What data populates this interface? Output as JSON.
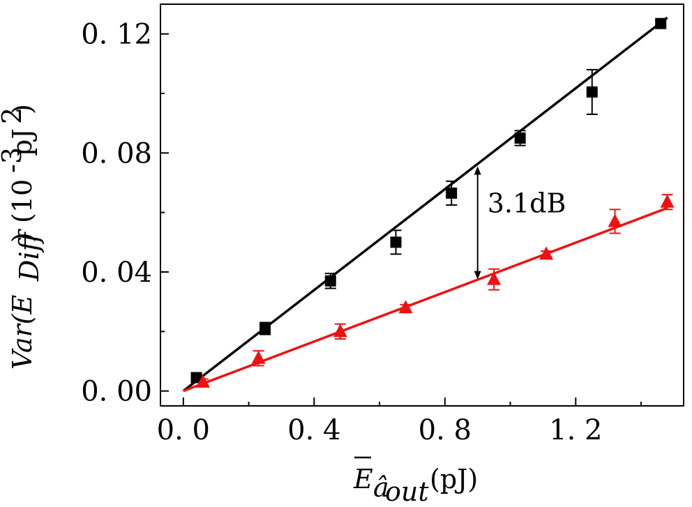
{
  "chart_data": {
    "type": "scatter",
    "xlim": [
      -0.07,
      1.53
    ],
    "ylim": [
      -0.005,
      0.13
    ],
    "x_ticks": [
      0.0,
      0.4,
      0.8,
      1.2
    ],
    "x_tick_labels": [
      "0. 0",
      "0. 4",
      "0. 8",
      "1. 2"
    ],
    "x_minor_ticks": [
      0.2,
      0.6,
      1.0,
      1.4
    ],
    "y_ticks": [
      0.0,
      0.04,
      0.08,
      0.12
    ],
    "y_tick_labels": [
      "0. 00",
      "0. 04",
      "0. 08",
      "0. 12"
    ],
    "y_minor_ticks": [
      0.02,
      0.06,
      0.1
    ],
    "xlabel": {
      "main": "E",
      "sub": "â",
      "subsub": "out",
      "units": "(pJ)"
    },
    "ylabel": {
      "prefix": "Var(E",
      "sub": "Diff",
      "suffix": ")",
      "units_pre": "(10",
      "units_exp1": "-3",
      "units_mid": "pJ",
      "units_exp2": "2",
      "units_post": ")"
    },
    "series": [
      {
        "name": "black",
        "marker": "square",
        "color": "#000000",
        "x": [
          0.04,
          0.25,
          0.45,
          0.65,
          0.82,
          1.03,
          1.25,
          1.46
        ],
        "y": [
          0.0045,
          0.021,
          0.037,
          0.05,
          0.0665,
          0.085,
          0.1005,
          0.1235
        ],
        "err": [
          0.0015,
          0.002,
          0.0025,
          0.004,
          0.004,
          0.0025,
          0.0075,
          0.001
        ],
        "fit": {
          "x": [
            0.0,
            1.48
          ],
          "y": [
            0.0,
            0.1255
          ]
        }
      },
      {
        "name": "red",
        "marker": "triangle",
        "color": "#ee1111",
        "x": [
          0.06,
          0.23,
          0.48,
          0.68,
          0.95,
          1.11,
          1.32,
          1.48
        ],
        "y": [
          0.003,
          0.011,
          0.02,
          0.028,
          0.0375,
          0.046,
          0.057,
          0.0635
        ],
        "err": [
          0.001,
          0.0025,
          0.0025,
          0.001,
          0.0035,
          0.001,
          0.004,
          0.0025
        ],
        "fit": {
          "x": [
            0.0,
            1.48
          ],
          "y": [
            0.0,
            0.0615
          ]
        }
      }
    ],
    "annotation": {
      "text": "3.1dB",
      "arrow_x": 0.9,
      "arrow_y_top": 0.0755,
      "arrow_y_bottom": 0.0375,
      "text_x": 0.93,
      "text_y": 0.06
    }
  }
}
